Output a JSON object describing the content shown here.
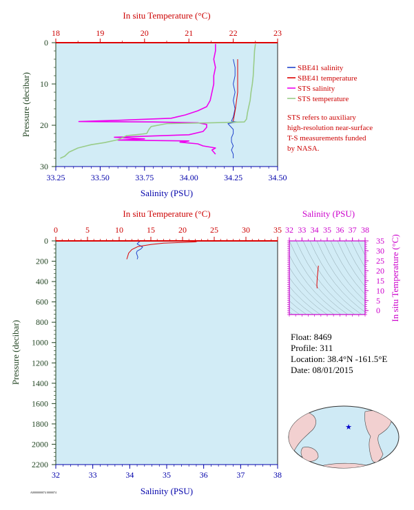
{
  "colors": {
    "salinity_axis": "#0000aa",
    "temperature_axis": "#cc0000",
    "pressure_axis": "#224422",
    "ts_axis": "#cc00cc",
    "plot_bg": "#d2ecf6",
    "sbe41_salinity": "#2244cc",
    "sbe41_temperature": "#dd0000",
    "sts_salinity": "#ee00ee",
    "sts_temperature": "#99cc88",
    "note_text": "#cc0000"
  },
  "chart_data": [
    {
      "type": "line",
      "name": "near-surface",
      "top_axis_label": "In situ Temperature (°C)",
      "top_ticks": [
        "18",
        "19",
        "20",
        "21",
        "22",
        "23"
      ],
      "top_range": [
        18,
        23
      ],
      "bottom_axis_label": "Salinity (PSU)",
      "bottom_ticks": [
        "33.25",
        "33.50",
        "33.75",
        "34.00",
        "34.25",
        "34.50"
      ],
      "bottom_range": [
        33.25,
        34.5
      ],
      "left_axis_label": "Pressure (decibar)",
      "left_ticks": [
        "0",
        "10",
        "20",
        "30"
      ],
      "y_range": [
        0,
        30
      ],
      "grid": false,
      "legend_position": "right",
      "series": [
        {
          "name": "SBE41 salinity",
          "axis": "salinity",
          "points": [
            [
              34.25,
              4
            ],
            [
              34.26,
              6
            ],
            [
              34.26,
              8
            ],
            [
              34.25,
              10
            ],
            [
              34.26,
              12
            ],
            [
              34.25,
              14
            ],
            [
              34.26,
              16
            ],
            [
              34.25,
              18
            ],
            [
              34.24,
              19
            ],
            [
              34.27,
              19.2
            ],
            [
              34.22,
              19.6
            ],
            [
              34.25,
              21
            ],
            [
              34.25,
              22
            ],
            [
              34.24,
              23
            ],
            [
              34.24,
              24
            ],
            [
              34.25,
              25
            ],
            [
              34.24,
              26
            ],
            [
              34.25,
              27
            ],
            [
              34.25,
              28
            ]
          ]
        },
        {
          "name": "SBE41 temperature",
          "axis": "temperature",
          "points": [
            [
              22.1,
              4
            ],
            [
              22.1,
              8
            ],
            [
              22.1,
              12
            ],
            [
              22.05,
              16
            ],
            [
              22.0,
              19
            ]
          ]
        },
        {
          "name": "STS salinity",
          "axis": "salinity",
          "points": [
            [
              34.15,
              0.3
            ],
            [
              34.15,
              2
            ],
            [
              34.14,
              4
            ],
            [
              34.15,
              6
            ],
            [
              34.14,
              8
            ],
            [
              34.14,
              10
            ],
            [
              34.13,
              12
            ],
            [
              34.12,
              14
            ],
            [
              34.1,
              15.5
            ],
            [
              34.05,
              16.5
            ],
            [
              33.98,
              17.5
            ],
            [
              33.9,
              18.3
            ],
            [
              33.6,
              18.8
            ],
            [
              33.38,
              19.1
            ],
            [
              33.8,
              19.2
            ],
            [
              34.05,
              19.4
            ],
            [
              34.1,
              19.8
            ],
            [
              34.1,
              20.5
            ],
            [
              34.08,
              21.5
            ],
            [
              34.0,
              22.3
            ],
            [
              33.58,
              22.9
            ],
            [
              33.75,
              23.3
            ],
            [
              33.6,
              23.6
            ],
            [
              34.0,
              23.8
            ],
            [
              33.95,
              24.1
            ],
            [
              34.05,
              24.5
            ],
            [
              34.08,
              25
            ],
            [
              34.15,
              25.5
            ],
            [
              34.13,
              26
            ],
            [
              34.14,
              26.5
            ],
            [
              34.15,
              27
            ]
          ]
        },
        {
          "name": "STS temperature",
          "axis": "temperature",
          "points": [
            [
              22.5,
              0.3
            ],
            [
              22.48,
              2
            ],
            [
              22.47,
              4
            ],
            [
              22.46,
              6
            ],
            [
              22.45,
              8
            ],
            [
              22.43,
              10
            ],
            [
              22.4,
              12
            ],
            [
              22.38,
              14
            ],
            [
              22.35,
              15.5
            ],
            [
              22.32,
              17
            ],
            [
              22.3,
              18.5
            ],
            [
              22.25,
              19.2
            ],
            [
              21.5,
              19.4
            ],
            [
              20.5,
              19.6
            ],
            [
              20.15,
              20.3
            ],
            [
              20.1,
              21
            ],
            [
              20.05,
              22
            ],
            [
              19.8,
              22.3
            ],
            [
              19.6,
              22.5
            ],
            [
              19.4,
              23.5
            ],
            [
              19.1,
              24.2
            ],
            [
              18.8,
              24.7
            ],
            [
              18.5,
              25.5
            ],
            [
              18.3,
              26.5
            ],
            [
              18.2,
              27.5
            ],
            [
              18.1,
              28
            ]
          ]
        }
      ],
      "legend": [
        {
          "label": "SBE41 salinity",
          "color": "#2244cc"
        },
        {
          "label": "SBE41 temperature",
          "color": "#dd0000"
        },
        {
          "label": "STS salinity",
          "color": "#ee00ee"
        },
        {
          "label": "STS temperature",
          "color": "#99cc88"
        }
      ],
      "note": [
        "STS refers to auxiliary",
        "high-resolution near-surface",
        "T-S measurements funded",
        "by NASA."
      ]
    },
    {
      "type": "line",
      "name": "full-profile",
      "top_axis_label": "In situ Temperature (°C)",
      "top_ticks": [
        "0",
        "5",
        "10",
        "15",
        "20",
        "25",
        "30",
        "35"
      ],
      "top_range": [
        0,
        35
      ],
      "bottom_axis_label": "Salinity (PSU)",
      "bottom_ticks": [
        "32",
        "33",
        "34",
        "35",
        "36",
        "37",
        "38"
      ],
      "bottom_range": [
        32,
        38
      ],
      "left_axis_label": "Pressure (decibar)",
      "left_ticks": [
        "0",
        "200",
        "400",
        "600",
        "800",
        "1000",
        "1200",
        "1400",
        "1600",
        "1800",
        "2000",
        "2200"
      ],
      "y_range": [
        0,
        2200
      ],
      "grid": false,
      "series": [
        {
          "name": "salinity",
          "axis": "salinity",
          "points": [
            [
              34.3,
              0
            ],
            [
              34.25,
              10
            ],
            [
              34.2,
              30
            ],
            [
              34.3,
              50
            ],
            [
              34.35,
              60
            ],
            [
              34.3,
              80
            ],
            [
              34.2,
              100
            ],
            [
              34.18,
              120
            ],
            [
              34.2,
              140
            ],
            [
              34.22,
              160
            ],
            [
              34.2,
              180
            ]
          ]
        },
        {
          "name": "temperature",
          "axis": "temperature",
          "points": [
            [
              22.5,
              0
            ],
            [
              22,
              10
            ],
            [
              20,
              15
            ],
            [
              17,
              22
            ],
            [
              15,
              35
            ],
            [
              13,
              55
            ],
            [
              12,
              85
            ],
            [
              11.5,
              120
            ],
            [
              11.3,
              160
            ],
            [
              11.2,
              180
            ]
          ]
        }
      ]
    },
    {
      "type": "line",
      "name": "t-s-diagram",
      "top_axis_label": "Salinity (PSU)",
      "top_ticks": [
        "32",
        "33",
        "34",
        "35",
        "36",
        "37",
        "38"
      ],
      "x_range": [
        32,
        38
      ],
      "right_axis_label": "In situ Temperature (°C)",
      "right_ticks": [
        "0",
        "5",
        "10",
        "15",
        "20",
        "25",
        "30",
        "35"
      ],
      "y_range": [
        -2,
        35
      ],
      "grid": false,
      "series": [
        {
          "name": "t-s",
          "points": [
            [
              34.3,
              22.5
            ],
            [
              34.28,
              21
            ],
            [
              34.25,
              19
            ],
            [
              34.22,
              17
            ],
            [
              34.2,
              15
            ],
            [
              34.18,
              13
            ],
            [
              34.2,
              11.5
            ],
            [
              34.22,
              11.2
            ]
          ]
        }
      ]
    }
  ],
  "float_info": {
    "float": "Float:  8469",
    "profile": "Profile:  311",
    "location": "Location:  38.4°N  -161.5°E",
    "date": "Date:  08/01/2015"
  },
  "footer_code": "A0000000074 0000074"
}
